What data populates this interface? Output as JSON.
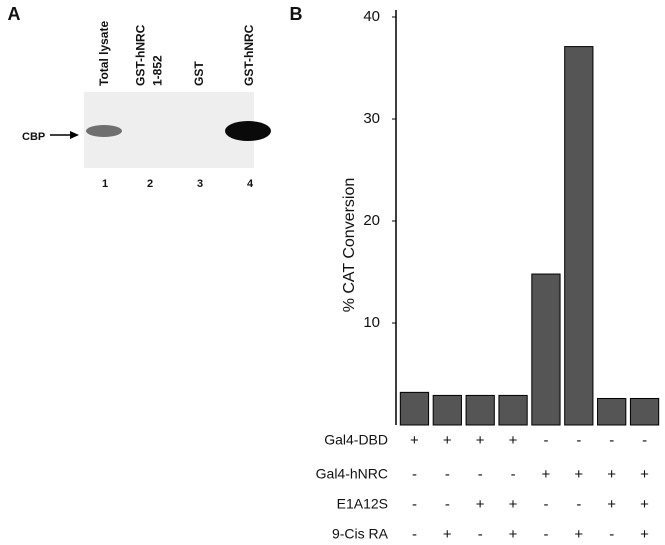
{
  "chart_data": {
    "type": "bar",
    "panel_label": "B",
    "y_label": "% CAT Conversion",
    "categories": [
      null,
      null,
      null,
      null,
      null,
      null,
      null,
      null
    ],
    "values": [
      3.2,
      2.9,
      2.9,
      2.9,
      14.8,
      37.1,
      2.6,
      2.6
    ],
    "color": "#555555",
    "ylim": [
      0,
      40
    ],
    "yticks": [
      10,
      20,
      30,
      40
    ],
    "conditions": [
      {
        "name": "Gal4-DBD",
        "values": [
          "+",
          "+",
          "+",
          "+",
          "-",
          "-",
          "-",
          "-"
        ]
      },
      {
        "name": "Gal4-hNRC",
        "values": [
          "-",
          "-",
          "-",
          "-",
          "+",
          "+",
          "+",
          "+"
        ]
      },
      {
        "name": "E1A12S",
        "values": [
          "-",
          "-",
          "+",
          "+",
          "-",
          "-",
          "+",
          "+"
        ]
      },
      {
        "name": "9-Cis RA",
        "values": [
          "-",
          "+",
          "-",
          "+",
          "-",
          "+",
          "-",
          "+"
        ]
      }
    ]
  },
  "blot": {
    "panel_label": "A",
    "band_label": "CBP",
    "lanes": [
      {
        "header": [
          "Total lysate"
        ],
        "number": "1"
      },
      {
        "header": [
          "GST-hNRC",
          "1-852"
        ],
        "number": "2"
      },
      {
        "header": [
          "GST"
        ],
        "number": "3"
      },
      {
        "header": [
          "GST-hNRC"
        ],
        "number": "4"
      }
    ]
  }
}
